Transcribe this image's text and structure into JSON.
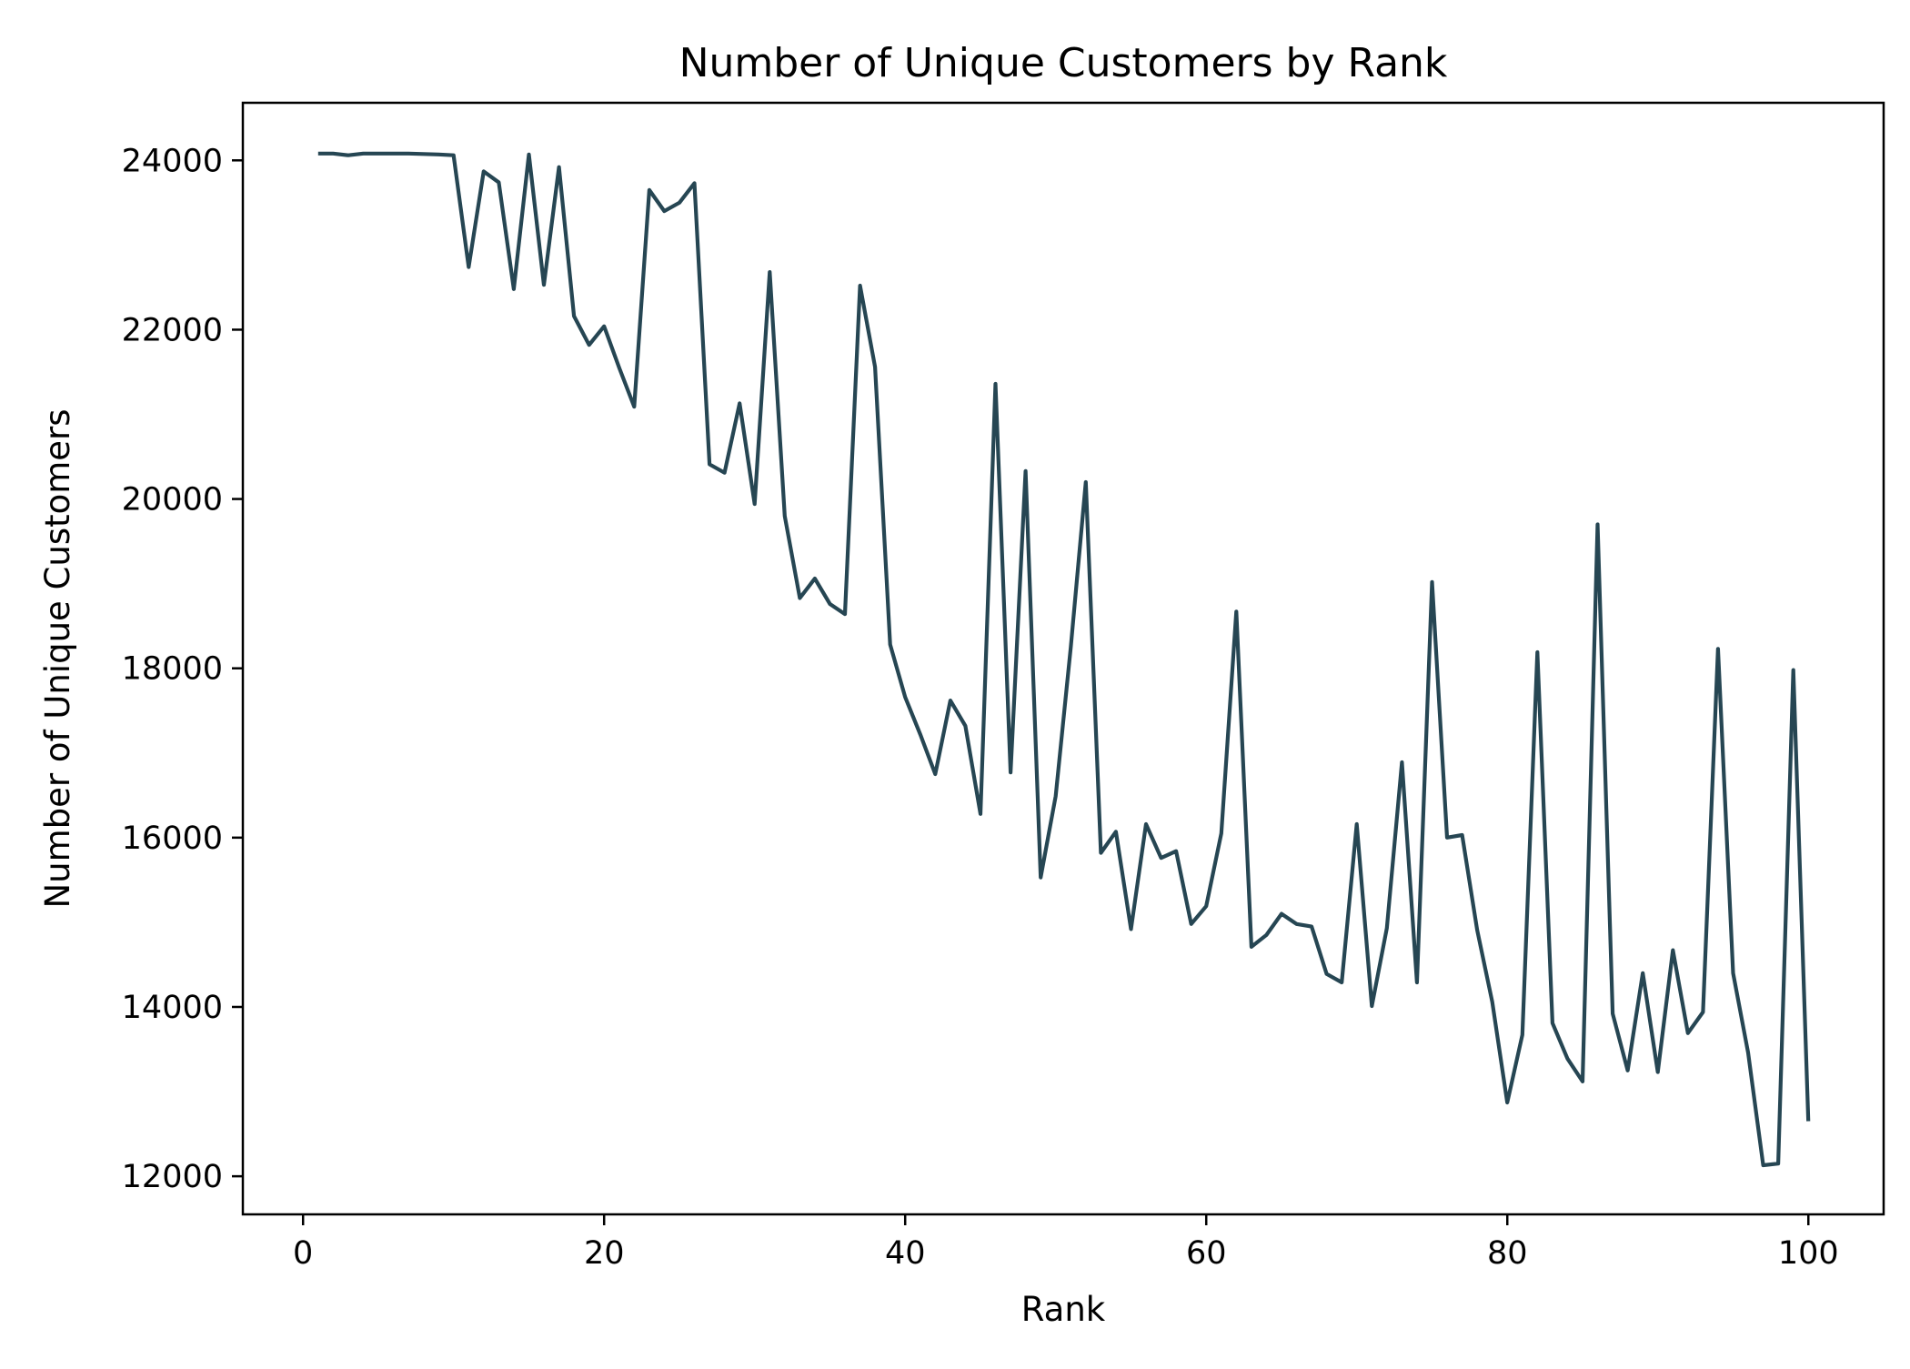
{
  "colors": {
    "line": "#264653",
    "axes": "#000000",
    "background": "#ffffff"
  },
  "chart_data": {
    "type": "line",
    "title": "Number of Unique Customers by Rank",
    "xlabel": "Rank",
    "ylabel": "Number of Unique Customers",
    "xlim": [
      -4,
      105
    ],
    "ylim": [
      11550,
      24680
    ],
    "xticks": [
      0,
      20,
      40,
      60,
      80,
      100
    ],
    "yticks": [
      12000,
      14000,
      16000,
      18000,
      20000,
      22000,
      24000
    ],
    "grid": false,
    "legend": "none",
    "series": [
      {
        "x": [
          1,
          2,
          3,
          4,
          5,
          6,
          7,
          8,
          9,
          10,
          11,
          12,
          13,
          14,
          15,
          16,
          17,
          18,
          19,
          20,
          21,
          22,
          23,
          24,
          25,
          26,
          27,
          28,
          29,
          30,
          31,
          32,
          33,
          34,
          35,
          36,
          37,
          38,
          39,
          40,
          41,
          42,
          43,
          44,
          45,
          46,
          47,
          48,
          49,
          50,
          51,
          52,
          53,
          54,
          55,
          56,
          57,
          58,
          59,
          60,
          61,
          62,
          63,
          64,
          65,
          66,
          67,
          68,
          69,
          70,
          71,
          72,
          73,
          74,
          75,
          76,
          77,
          78,
          79,
          80,
          81,
          82,
          83,
          84,
          85,
          86,
          87,
          88,
          89,
          90,
          91,
          92,
          93,
          94,
          95,
          96,
          97,
          98,
          99,
          100
        ],
        "values": [
          24080,
          24080,
          24060,
          24080,
          24080,
          24080,
          24080,
          24075,
          24070,
          24060,
          22740,
          23870,
          23740,
          22480,
          24070,
          22530,
          23920,
          22160,
          21820,
          22040,
          21550,
          21090,
          23650,
          23400,
          23500,
          23730,
          20410,
          20310,
          21130,
          19940,
          22680,
          19800,
          18830,
          19060,
          18760,
          18640,
          22520,
          21560,
          18280,
          17660,
          17220,
          16750,
          17620,
          17320,
          16280,
          21360,
          16770,
          20330,
          15530,
          16490,
          18250,
          20200,
          15820,
          16070,
          14920,
          16160,
          15760,
          15840,
          14980,
          15190,
          16050,
          18670,
          14710,
          14850,
          15100,
          14980,
          14950,
          14390,
          14290,
          16160,
          14010,
          14930,
          16890,
          14290,
          19020,
          16000,
          16030,
          14910,
          14060,
          12870,
          13670,
          18190,
          13810,
          13390,
          13120,
          19700,
          13920,
          13250,
          14400,
          13230,
          14670,
          13690,
          13940,
          18230,
          14400,
          13460,
          12130,
          12150,
          17980,
          12650
        ]
      }
    ]
  }
}
